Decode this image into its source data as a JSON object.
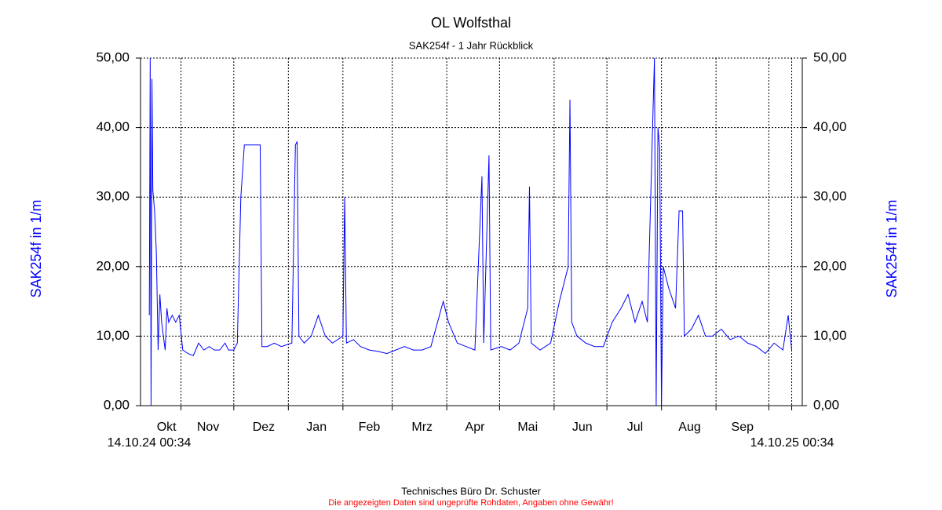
{
  "chart_data": {
    "type": "line",
    "title": "OL Wolfsthal",
    "subtitle": "SAK254f - 1 Jahr Rückblick",
    "y_label": "SAK254f in 1/m",
    "x_start_label": "14.10.24 00:34",
    "x_end_label": "14.10.25 00:34",
    "color": "#0000ff",
    "grid": true,
    "xlim": [
      -5,
      371
    ],
    "ylim": [
      0,
      50
    ],
    "yticks": [
      {
        "value": 0,
        "label": "0,00"
      },
      {
        "value": 10,
        "label": "10,00"
      },
      {
        "value": 20,
        "label": "20,00"
      },
      {
        "value": 30,
        "label": "30,00"
      },
      {
        "value": 40,
        "label": "40,00"
      },
      {
        "value": 50,
        "label": "50,00"
      }
    ],
    "xticks": [
      {
        "value": 9.8,
        "label": "Okt"
      },
      {
        "value": 33.4,
        "label": "Nov"
      },
      {
        "value": 65,
        "label": "Dez"
      },
      {
        "value": 95,
        "label": "Jan"
      },
      {
        "value": 125,
        "label": "Feb"
      },
      {
        "value": 155,
        "label": "Mrz"
      },
      {
        "value": 185,
        "label": "Apr"
      },
      {
        "value": 215,
        "label": "Mai"
      },
      {
        "value": 246,
        "label": "Jun"
      },
      {
        "value": 276,
        "label": "Jul"
      },
      {
        "value": 307,
        "label": "Aug"
      },
      {
        "value": 337,
        "label": "Sep"
      }
    ],
    "xgrid": [
      18,
      48,
      79,
      110,
      138,
      169,
      199,
      230,
      260,
      291,
      322,
      352,
      365
    ],
    "x": [
      0,
      0.5,
      1,
      1.5,
      2,
      3,
      4,
      5,
      6,
      7,
      8,
      9,
      10,
      11,
      13,
      15,
      17,
      19,
      22,
      25,
      28,
      31,
      34,
      37,
      40,
      43,
      45,
      48,
      50,
      52,
      54,
      58,
      63,
      64,
      67,
      71,
      75,
      81,
      83,
      84,
      85,
      88,
      92,
      96,
      100,
      104,
      110,
      111,
      112,
      116,
      120,
      125,
      130,
      135,
      140,
      145,
      150,
      155,
      160,
      167,
      170,
      175,
      180,
      185,
      189,
      190,
      193,
      194,
      200,
      205,
      210,
      215,
      216,
      217,
      222,
      228,
      233,
      238,
      239,
      240,
      243,
      248,
      253,
      258,
      263,
      268,
      272,
      276,
      280,
      283,
      287,
      288,
      289,
      290,
      291,
      292,
      295,
      299,
      301,
      303,
      304,
      308,
      312,
      316,
      320,
      325,
      330,
      335,
      340,
      345,
      350,
      355,
      360,
      363,
      365
    ],
    "values": [
      13,
      50,
      0,
      47,
      31,
      28,
      22,
      8,
      16,
      12,
      10,
      8,
      14,
      12,
      13,
      12,
      13,
      8,
      7.5,
      7.2,
      9,
      8,
      8.5,
      8,
      8,
      9,
      8,
      8,
      9,
      30,
      37.5,
      37.5,
      37.5,
      8.5,
      8.5,
      9,
      8.5,
      9,
      37.5,
      38,
      10,
      9,
      10,
      13,
      10,
      9,
      10,
      30,
      9,
      9.5,
      8.5,
      8,
      7.8,
      7.5,
      8,
      8.5,
      8,
      8,
      8.5,
      15,
      12,
      9,
      8.5,
      8,
      33,
      9,
      36,
      8,
      8.5,
      8,
      9,
      14,
      31.5,
      9,
      8,
      9,
      15,
      20,
      44,
      12,
      10,
      9,
      8.5,
      8.5,
      12,
      14,
      16,
      12,
      15,
      12,
      50,
      0,
      40,
      37,
      0,
      20,
      17,
      14,
      28,
      28,
      10,
      11,
      13,
      10,
      10,
      11,
      9.5,
      10,
      9,
      8.5,
      7.5,
      9,
      8,
      13,
      8
    ]
  },
  "footer": "Technisches Büro Dr. Schuster",
  "disclaimer": "Die angezeigten Daten sind ungeprüfte Rohdaten, Angaben ohne Gewähr!"
}
